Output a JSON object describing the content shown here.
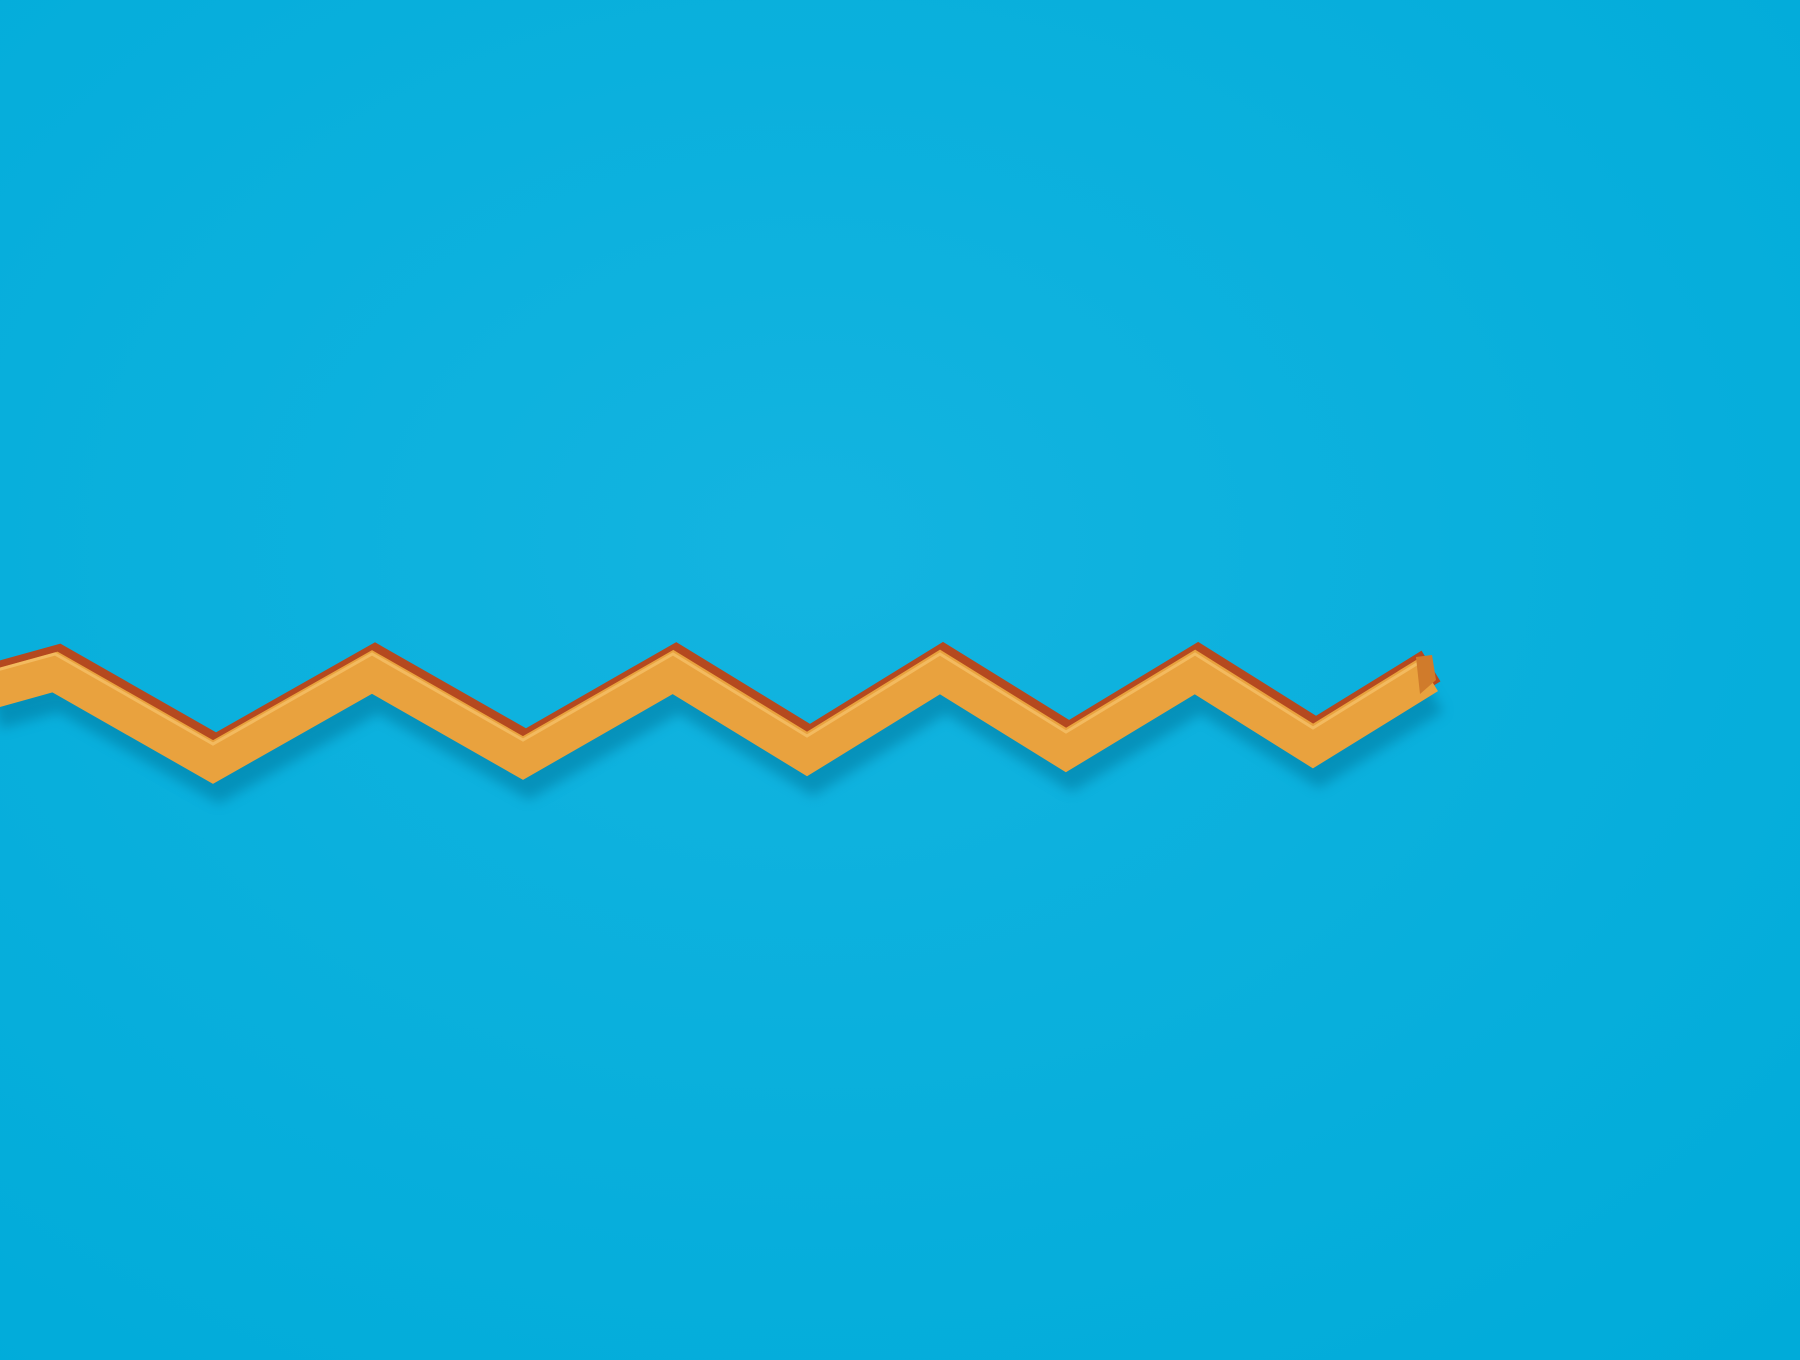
{
  "scene": {
    "subject": "zigzag-strip",
    "colors": {
      "background": "#00abd9",
      "background_highlight": "#13b4e0",
      "strip_face": "#e9a23e",
      "strip_top_edge": "#f6c56d",
      "strip_side_edge": "#b4491f",
      "strip_end_cap": "#d07b2b",
      "shadow": "#00789e"
    }
  }
}
